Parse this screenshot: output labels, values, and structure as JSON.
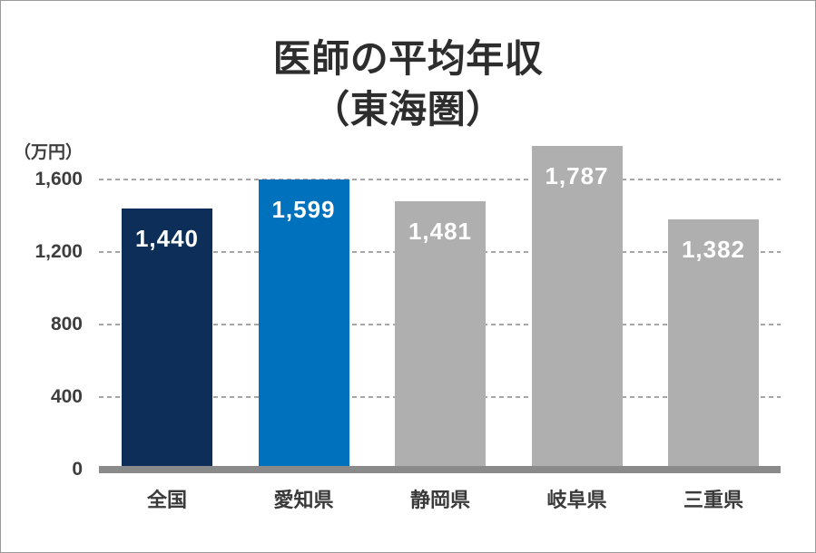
{
  "title": {
    "line1": "医師の平均年収",
    "line2": "（東海圏）"
  },
  "y_axis": {
    "unit_label": "（万円）",
    "ticks": [
      {
        "label": "1,600",
        "value": 1600
      },
      {
        "label": "1,200",
        "value": 1200
      },
      {
        "label": "800",
        "value": 800
      },
      {
        "label": "400",
        "value": 400
      },
      {
        "label": "0",
        "value": 0
      }
    ]
  },
  "chart_data": {
    "type": "bar",
    "title": "医師の平均年収（東海圏）",
    "xlabel": "",
    "ylabel": "（万円）",
    "categories": [
      "全国",
      "愛知県",
      "静岡県",
      "岐阜県",
      "三重県"
    ],
    "values": [
      1440,
      1599,
      1481,
      1787,
      1382
    ],
    "value_labels": [
      "1,440",
      "1,599",
      "1,481",
      "1,787",
      "1,382"
    ],
    "bar_colors": [
      "#0c2e59",
      "#0071bc",
      "#afafaf",
      "#afafaf",
      "#afafaf"
    ],
    "ylim": [
      0,
      1800
    ],
    "ytick_interval": 400,
    "grid": "horizontal-dashed",
    "legend_position": "none"
  },
  "style_colors": {
    "accent_dark_blue": "#0c2e59",
    "accent_blue": "#0071bc",
    "neutral_bar_gray": "#afafaf",
    "axis_line_gray": "#8a8a8a",
    "gridline_gray": "#a6a6a6",
    "title_text": "#2d2d2d",
    "axis_text": "#3d3d3d",
    "value_label_text": "#ffffff"
  }
}
